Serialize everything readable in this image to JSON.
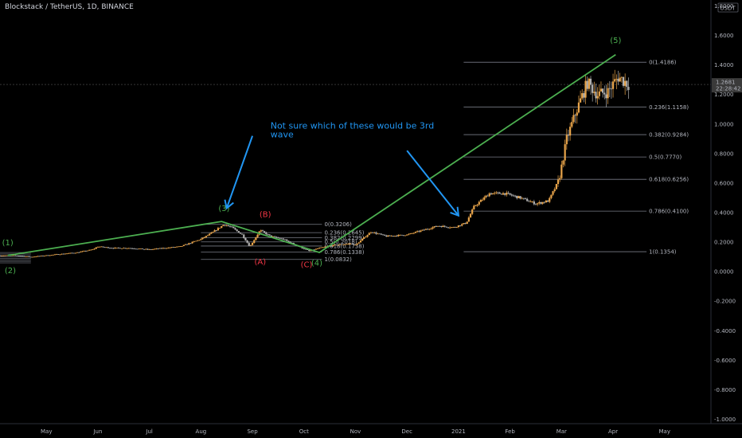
{
  "header": {
    "title": "Blockstack / TetherUS, 1D, BINANCE"
  },
  "price_scale": {
    "unit": "USDT",
    "current_price": "1.2681",
    "countdown": "22:28:42"
  },
  "colors": {
    "background": "#000000",
    "up_candle": "#e8a44a",
    "down_candle": "#b0b0b0",
    "wave_line": "#4caf50",
    "fib_line": "#787b86",
    "annotation": "#2196f3",
    "green_label": "#4caf50",
    "red_label": "#f23645",
    "price_tag": "#3a3a3a"
  },
  "chart_data": {
    "type": "candlestick",
    "title": "Blockstack / TetherUS, 1D, BINANCE",
    "ylim": [
      -1.0,
      1.8
    ],
    "y_ticks": [
      "1.8000",
      "1.6000",
      "1.4000",
      "1.2000",
      "1.0000",
      "0.8000",
      "0.6000",
      "0.4000",
      "0.2000",
      "0.0000",
      "-0.2000",
      "-0.4000",
      "-0.6000",
      "-0.8000",
      "-1.0000"
    ],
    "y_tick_values": [
      1.8,
      1.6,
      1.4,
      1.2,
      1.0,
      0.8,
      0.6,
      0.4,
      0.2,
      0.0,
      -0.2,
      -0.4,
      -0.6,
      -0.8,
      -1.0
    ],
    "x_ticks": [
      "May",
      "Jun",
      "Jul",
      "Aug",
      "Sep",
      "Oct",
      "Nov",
      "Dec",
      "2021",
      "Feb",
      "Mar",
      "Apr",
      "May"
    ],
    "x_tick_months": [
      0,
      1,
      2,
      3,
      4,
      5,
      6,
      7,
      8,
      9,
      10,
      11,
      12
    ],
    "x_range_months": [
      -0.9,
      12.9
    ],
    "price_path": [
      [
        -0.9,
        0.11
      ],
      [
        -0.6,
        0.11
      ],
      [
        -0.3,
        0.1
      ],
      [
        0.0,
        0.11
      ],
      [
        0.3,
        0.12
      ],
      [
        0.6,
        0.13
      ],
      [
        0.9,
        0.15
      ],
      [
        1.0,
        0.17
      ],
      [
        1.3,
        0.16
      ],
      [
        1.6,
        0.16
      ],
      [
        2.0,
        0.15
      ],
      [
        2.3,
        0.16
      ],
      [
        2.6,
        0.17
      ],
      [
        3.0,
        0.22
      ],
      [
        3.2,
        0.26
      ],
      [
        3.45,
        0.32
      ],
      [
        3.6,
        0.3
      ],
      [
        3.8,
        0.25
      ],
      [
        3.95,
        0.17
      ],
      [
        4.15,
        0.28
      ],
      [
        4.35,
        0.24
      ],
      [
        4.6,
        0.22
      ],
      [
        4.9,
        0.17
      ],
      [
        5.1,
        0.14
      ],
      [
        5.3,
        0.16
      ],
      [
        5.6,
        0.18
      ],
      [
        5.9,
        0.19
      ],
      [
        6.0,
        0.18
      ],
      [
        6.3,
        0.27
      ],
      [
        6.6,
        0.24
      ],
      [
        7.0,
        0.25
      ],
      [
        7.3,
        0.28
      ],
      [
        7.6,
        0.31
      ],
      [
        7.9,
        0.3
      ],
      [
        8.15,
        0.33
      ],
      [
        8.3,
        0.44
      ],
      [
        8.6,
        0.53
      ],
      [
        8.9,
        0.53
      ],
      [
        9.2,
        0.5
      ],
      [
        9.5,
        0.46
      ],
      [
        9.75,
        0.48
      ],
      [
        9.95,
        0.62
      ],
      [
        10.1,
        0.9
      ],
      [
        10.3,
        1.1
      ],
      [
        10.5,
        1.28
      ],
      [
        10.7,
        1.2
      ],
      [
        10.9,
        1.22
      ],
      [
        11.1,
        1.32
      ],
      [
        11.3,
        1.27
      ]
    ],
    "series": [
      {
        "name": "wave count",
        "points": [
          [
            -0.75,
            0.11
          ],
          [
            3.4,
            0.34
          ],
          [
            5.3,
            0.13
          ],
          [
            11.05,
            1.47
          ]
        ],
        "labels": [
          "(1)",
          "(3)",
          "(4)",
          "(5)"
        ]
      }
    ],
    "wave_labels": [
      {
        "text": "(1)",
        "x": -0.75,
        "y": 0.18,
        "color": "green"
      },
      {
        "text": "(2)",
        "x": -0.7,
        "y": -0.01,
        "color": "green"
      },
      {
        "text": "(3)",
        "x": 3.45,
        "y": 0.41,
        "color": "green"
      },
      {
        "text": "(4)",
        "x": 5.25,
        "y": 0.04,
        "color": "green"
      },
      {
        "text": "(5)",
        "x": 11.05,
        "y": 1.55,
        "color": "green"
      },
      {
        "text": "(A)",
        "x": 4.15,
        "y": 0.05,
        "color": "red"
      },
      {
        "text": "(B)",
        "x": 4.25,
        "y": 0.37,
        "color": "red"
      },
      {
        "text": "(C)",
        "x": 5.05,
        "y": 0.03,
        "color": "red"
      }
    ],
    "fib_small": {
      "x_range": [
        3.0,
        5.35
      ],
      "levels": [
        {
          "label": "0(0.3206)",
          "value": 0.3206
        },
        {
          "label": "0.236(0.2645)",
          "value": 0.2645
        },
        {
          "label": "0.382(0.2299)",
          "value": 0.2299
        },
        {
          "label": "0.5(0.2018)",
          "value": 0.2018
        },
        {
          "label": "0.618(0.1738)",
          "value": 0.1738
        },
        {
          "label": "0.786(0.1338)",
          "value": 0.1338
        },
        {
          "label": "1(0.0832)",
          "value": 0.0832
        }
      ]
    },
    "fib_large": {
      "x_range": [
        8.1,
        11.65
      ],
      "levels": [
        {
          "label": "0(1.4186)",
          "value": 1.4186
        },
        {
          "label": "0.236(1.1158)",
          "value": 1.1158
        },
        {
          "label": "0.382(0.9284)",
          "value": 0.9284
        },
        {
          "label": "0.5(0.7770)",
          "value": 0.777
        },
        {
          "label": "0.618(0.6256)",
          "value": 0.6256
        },
        {
          "label": "0.786(0.4100)",
          "value": 0.41
        },
        {
          "label": "1(0.1354)",
          "value": 0.1354
        }
      ]
    },
    "fib_tiny_left": {
      "x_range": [
        -0.95,
        -0.3
      ],
      "levels": [
        0.13,
        0.12,
        0.11,
        0.1,
        0.09,
        0.08,
        0.07,
        0.06
      ]
    },
    "annotation": {
      "text_lines": [
        "Not sure which of these would be 3rd",
        "wave"
      ]
    },
    "arrows": [
      {
        "from": [
          4.0,
          0.92
        ],
        "to": [
          3.5,
          0.43
        ]
      },
      {
        "from": [
          7.0,
          0.82
        ],
        "to": [
          8.0,
          0.38
        ]
      }
    ]
  }
}
